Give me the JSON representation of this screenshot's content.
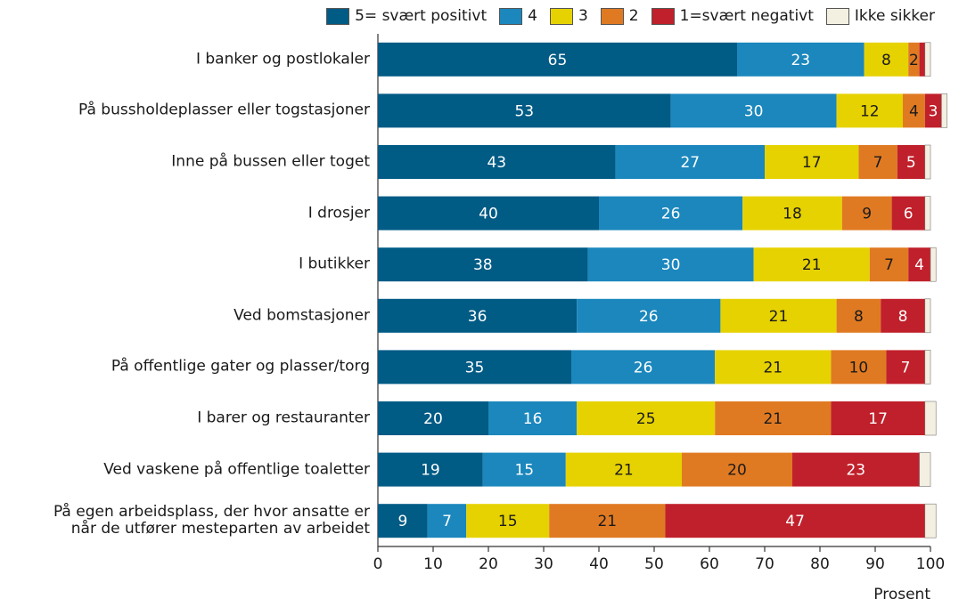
{
  "chart_data": {
    "type": "stacked_barh",
    "categories": [
      "I banker og postlokaler",
      "På bussholdeplasser eller togstasjoner",
      "Inne på bussen eller toget",
      "I drosjer",
      "I butikker",
      "Ved bomstasjoner",
      "På offentlige gater og plasser/torg",
      "I barer og restauranter",
      "Ved vaskene på offentlige toaletter",
      "På egen arbeidsplass, der hvor ansatte er\nnår de utfører mesteparten av arbeidet"
    ],
    "series": [
      {
        "name": "5= svært positivt",
        "color": "#005b85",
        "label_color": "#ffffff",
        "show_labels": true,
        "values": [
          65,
          53,
          43,
          40,
          38,
          36,
          35,
          20,
          19,
          9
        ]
      },
      {
        "name": "4",
        "color": "#1b87bd",
        "label_color": "#ffffff",
        "show_labels": true,
        "values": [
          23,
          30,
          27,
          26,
          30,
          26,
          26,
          16,
          15,
          7
        ]
      },
      {
        "name": "3",
        "color": "#e6d200",
        "label_color": "#1a1a1a",
        "show_labels": true,
        "values": [
          8,
          12,
          17,
          18,
          21,
          21,
          21,
          25,
          21,
          15
        ]
      },
      {
        "name": "2",
        "color": "#e07a22",
        "label_color": "#1a1a1a",
        "show_labels": true,
        "values": [
          2,
          4,
          7,
          9,
          7,
          8,
          10,
          21,
          20,
          21
        ]
      },
      {
        "name": "1=svært negativt",
        "color": "#c0202b",
        "label_color": "#ffffff",
        "show_labels": true,
        "values": [
          1,
          3,
          5,
          6,
          4,
          8,
          7,
          17,
          23,
          47
        ]
      },
      {
        "name": "Ikke sikker",
        "color": "#f4f0e1",
        "label_color": "#1a1a1a",
        "show_labels": false,
        "values": [
          1,
          1,
          1,
          1,
          1,
          1,
          1,
          2,
          2,
          2
        ]
      }
    ],
    "xlabel": "Prosent",
    "xlim": [
      0,
      100
    ],
    "xticks": [
      0,
      10,
      20,
      30,
      40,
      50,
      60,
      70,
      80,
      90,
      100
    ]
  }
}
